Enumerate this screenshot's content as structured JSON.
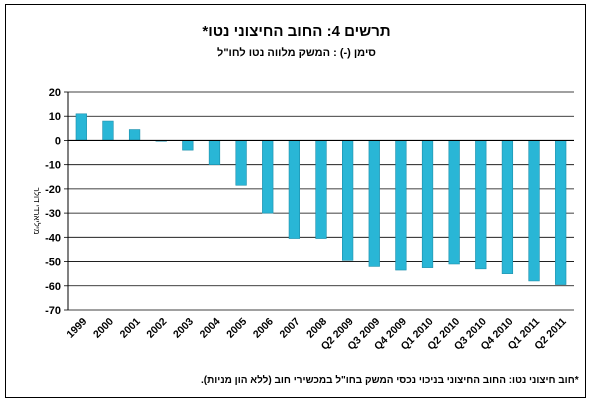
{
  "chart_data": {
    "type": "bar",
    "title": "תרשים 4: החוב החיצוני נטו*",
    "subtitle": "סימן (-) : המשק מלווה נטו לחו\"ל",
    "ylabel": "מיליארדי דולר",
    "footnote": "*חוב חיצוני נטו: החוב החיצוני בניכוי נכסי המשק בחו\"ל במכשירי חוב (ללא הון מניות).",
    "categories": [
      "1999",
      "2000",
      "2001",
      "2002",
      "2003",
      "2004",
      "2005",
      "2006",
      "2007",
      "2008",
      "Q2 2009",
      "Q3 2009",
      "Q4 2009",
      "Q1 2010",
      "Q2 2010",
      "Q3 2010",
      "Q4 2010",
      "Q1 2011",
      "Q2 2011"
    ],
    "values": [
      11,
      8,
      4.5,
      0,
      -4,
      -10,
      -18.5,
      -30,
      -40.5,
      -40.5,
      -49.5,
      -52,
      -53.5,
      -52.5,
      -51,
      -53,
      -55,
      -58,
      -59.5
    ],
    "ylim": [
      -70,
      20
    ],
    "yticks": [
      20,
      10,
      0,
      -10,
      -20,
      -30,
      -40,
      -50,
      -60,
      -70
    ],
    "ytick_labels": [
      "20",
      "10",
      "0",
      "-10",
      "-20",
      "-30",
      "-40",
      "-50",
      "-60",
      "-70"
    ],
    "grid": true,
    "bar_color": "#29B6D6",
    "bar_edge_color": "#1c8fab"
  }
}
